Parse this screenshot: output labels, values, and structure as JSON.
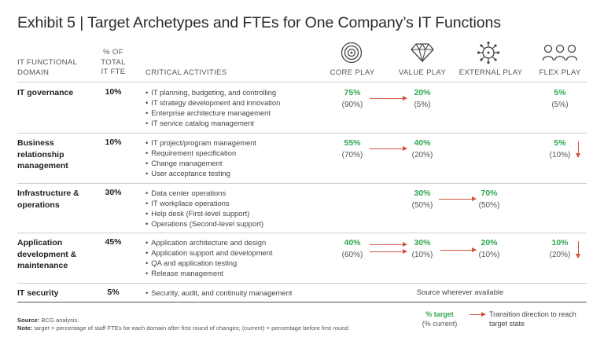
{
  "title": "Exhibit 5 | Target Archetypes and FTEs for One Company’s IT Functions",
  "headers": {
    "domain": [
      "IT FUNCTIONAL",
      "DOMAIN"
    ],
    "pct": [
      "% OF",
      "TOTAL",
      "IT FTE"
    ],
    "activities": "CRITICAL ACTIVITIES",
    "core": "CORE PLAY",
    "value": "VALUE PLAY",
    "external": "EXTERNAL PLAY",
    "flex": "FLEX PLAY"
  },
  "icons": {
    "core": "target-icon",
    "value": "diamond-icon",
    "external": "network-icon",
    "flex": "people-group-icon"
  },
  "rows": [
    {
      "domain": "IT governance",
      "pct": "10%",
      "activities": [
        "IT planning, budgeting, and controlling",
        "IT strategy development and innovation",
        "Enterprise architecture management",
        "IT service catalog management"
      ],
      "core": {
        "target": "75%",
        "current": "(90%)"
      },
      "value": {
        "target": "20%",
        "current": "(5%)"
      },
      "flex": {
        "target": "5%",
        "current": "(5%)"
      }
    },
    {
      "domain": "Business relationship management",
      "pct": "10%",
      "activities": [
        "IT project/program management",
        "Requirement specification",
        "Change management",
        "User acceptance testing"
      ],
      "core": {
        "target": "55%",
        "current": "(70%)"
      },
      "value": {
        "target": "40%",
        "current": "(20%)"
      },
      "flex": {
        "target": "5%",
        "current": "(10%)"
      }
    },
    {
      "domain": "Infrastructure & operations",
      "pct": "30%",
      "activities": [
        "Data center operations",
        "IT workplace operations",
        "Help desk (First-level support)",
        "Operations (Second-level support)"
      ],
      "value": {
        "target": "30%",
        "current": "(50%)"
      },
      "external": {
        "target": "70%",
        "current": "(50%)"
      }
    },
    {
      "domain": "Application development & maintenance",
      "pct": "45%",
      "activities": [
        "Application architecture and design",
        "Application support and development",
        "QA and application testing",
        "Release management"
      ],
      "core": {
        "target": "40%",
        "current": "(60%)"
      },
      "value": {
        "target": "30%",
        "current": "(10%)"
      },
      "external": {
        "target": "20%",
        "current": "(10%)"
      },
      "flex": {
        "target": "10%",
        "current": "(20%)"
      }
    },
    {
      "domain": "IT security",
      "pct": "5%",
      "activities": [
        "Security, audit, and continuity management"
      ],
      "note": "Source wherever available"
    }
  ],
  "legend": {
    "target": "% target",
    "current": "(% current)",
    "arrow_text": "Transition direction to reach target state"
  },
  "footer": {
    "source_label": "Source:",
    "source_text": "BCG analysis.",
    "note_label": "Note:",
    "note_text": "target = percentage of staff FTEs for each domain after first round of changes; (current) = percentage before first round."
  },
  "colors": {
    "target": "#2fa84f",
    "arrow": "#d0533c"
  }
}
